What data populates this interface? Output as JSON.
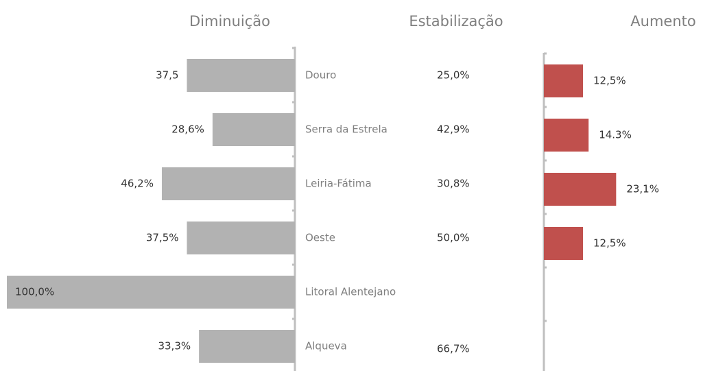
{
  "chart_data": {
    "type": "bar",
    "categories": [
      "Douro",
      "Serra da Estrela",
      "Leiria-Fátima",
      "Oeste",
      "Litoral Alentejano",
      "Alqueva"
    ],
    "series": [
      {
        "name": "Diminuição",
        "color": "#b2b2b2",
        "values": [
          37.5,
          28.6,
          46.2,
          37.5,
          100.0,
          33.3
        ],
        "value_labels": [
          "37,5",
          "28,6%",
          "46,2%",
          "37,5%",
          "100,0%",
          "33,3%"
        ]
      },
      {
        "name": "Estabilização",
        "values": [
          25.0,
          42.9,
          30.8,
          50.0,
          null,
          66.7
        ],
        "value_labels": [
          "25,0%",
          "42,9%",
          "30,8%",
          "50,0%",
          null,
          "66,7%"
        ]
      },
      {
        "name": "Aumento",
        "color": "#c0504d",
        "values": [
          12.5,
          14.3,
          23.1,
          12.5,
          null,
          null
        ],
        "value_labels": [
          "12,5%",
          "14.3%",
          "23,1%",
          "12,5%",
          null,
          null
        ]
      }
    ]
  }
}
